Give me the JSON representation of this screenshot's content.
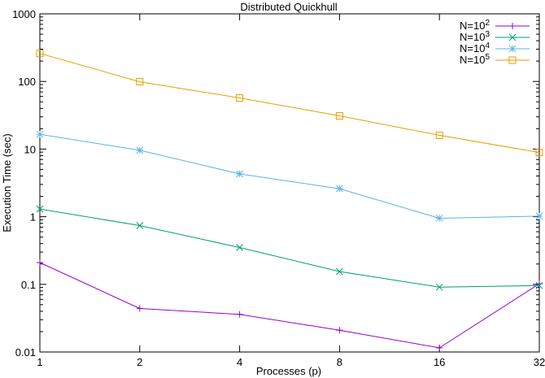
{
  "chart_data": {
    "type": "line",
    "title": "Distributed Quickhull",
    "xlabel": "Processes (p)",
    "ylabel": "Execution Time (sec)",
    "x_scale": "log2",
    "y_scale": "log10",
    "x": [
      1,
      2,
      4,
      8,
      16,
      32
    ],
    "x_tick_labels": [
      "1",
      "2",
      "4",
      "8",
      "16",
      "32"
    ],
    "ylim": [
      0.01,
      1000
    ],
    "y_ticks": [
      0.01,
      0.1,
      1,
      10,
      100,
      1000
    ],
    "y_tick_labels": [
      "0.01",
      "0.1",
      "1",
      "10",
      "100",
      "1000"
    ],
    "grid": false,
    "legend_position": "top-right",
    "series": [
      {
        "name_base": "N=10",
        "name_exp": "2",
        "color": "#9400d3",
        "marker": "plus",
        "values": [
          0.21,
          0.044,
          0.036,
          0.021,
          0.0115,
          0.102
        ]
      },
      {
        "name_base": "N=10",
        "name_exp": "3",
        "color": "#009e73",
        "marker": "cross",
        "values": [
          1.3,
          0.74,
          0.35,
          0.155,
          0.091,
          0.096
        ]
      },
      {
        "name_base": "N=10",
        "name_exp": "4",
        "color": "#56b4e9",
        "marker": "star",
        "values": [
          16.5,
          9.6,
          4.3,
          2.6,
          0.95,
          1.02
        ]
      },
      {
        "name_base": "N=10",
        "name_exp": "5",
        "color": "#e69f00",
        "marker": "square",
        "values": [
          260,
          99,
          57,
          31,
          16,
          8.9
        ]
      }
    ]
  }
}
